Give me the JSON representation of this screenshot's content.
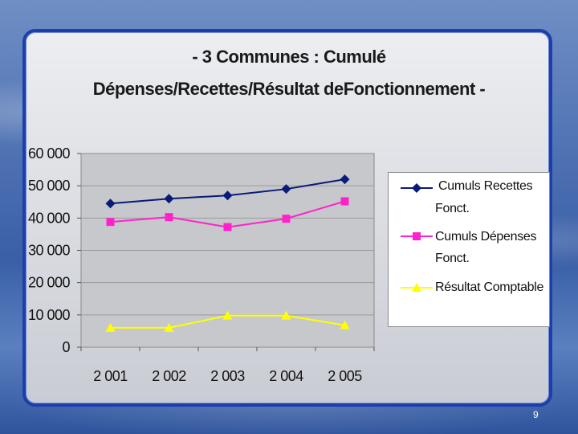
{
  "slide": {
    "page_number": "9"
  },
  "chart_data": {
    "type": "line",
    "title_line1": "- 3 Communes : Cumulé",
    "title_line2": "Dépenses/Recettes/Résultat deFonctionnement -",
    "categories": [
      "2 001",
      "2 002",
      "2 003",
      "2 004",
      "2 005"
    ],
    "y_ticks": [
      "60 000",
      "50 000",
      "40 000",
      "30 000",
      "20 000",
      "10 000",
      "0"
    ],
    "ylim": [
      0,
      60000
    ],
    "grid": "horizontal",
    "legend_position": "right",
    "series": [
      {
        "name_line1": "Cumuls Recettes",
        "name_line2": "Fonct.",
        "color": "#0a1a78",
        "marker": "diamond",
        "values": [
          44500,
          46000,
          47000,
          49000,
          52000
        ]
      },
      {
        "name_line1": "Cumuls Dépenses",
        "name_line2": "Fonct.",
        "color": "#ff22cc",
        "marker": "square",
        "values": [
          38800,
          40300,
          37200,
          39800,
          45200
        ]
      },
      {
        "name_line1": "Résultat Comptable",
        "name_line2": "",
        "color": "#ffff00",
        "marker": "triangle",
        "values": [
          6000,
          6000,
          9800,
          9800,
          6800
        ]
      }
    ]
  }
}
